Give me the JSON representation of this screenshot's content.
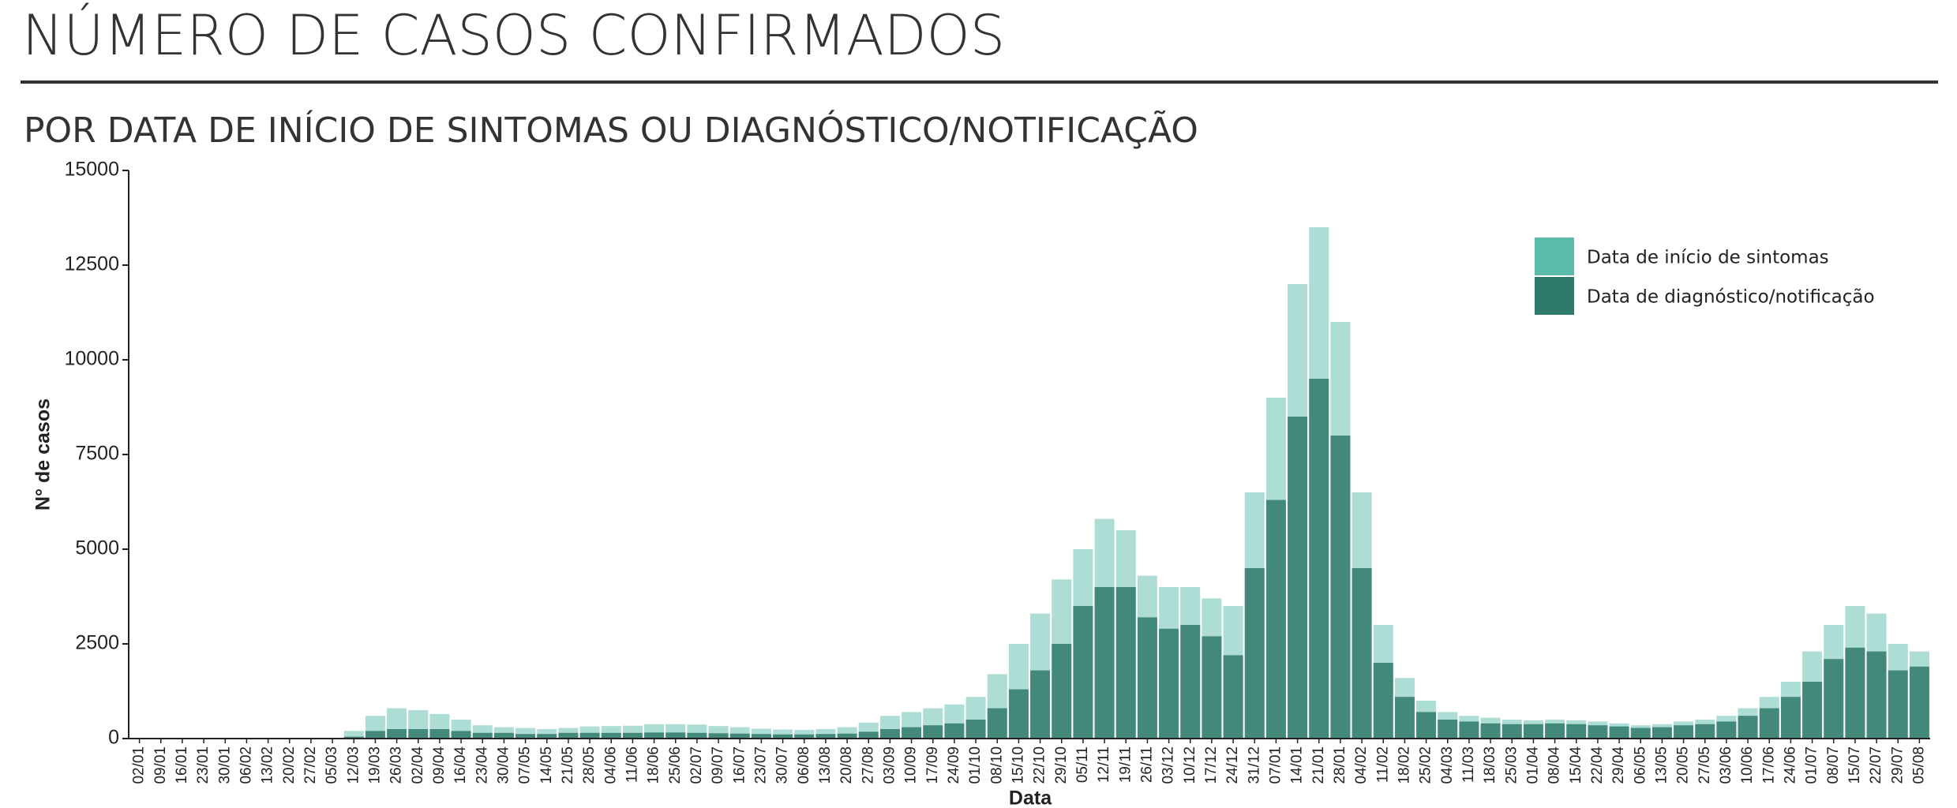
{
  "chart_data": {
    "type": "bar",
    "title": "NÚMERO DE CASOS CONFIRMADOS",
    "subtitle": "POR DATA DE INÍCIO DE SINTOMAS OU DIAGNÓSTICO/NOTIFICAÇÃO",
    "xlabel": "Data",
    "ylabel": "N° de casos",
    "categories": [
      "02/01",
      "09/01",
      "16/01",
      "23/01",
      "30/01",
      "06/02",
      "13/02",
      "20/02",
      "27/02",
      "05/03",
      "12/03",
      "19/03",
      "26/03",
      "02/04",
      "09/04",
      "16/04",
      "23/04",
      "30/04",
      "07/05",
      "14/05",
      "21/05",
      "28/05",
      "04/06",
      "11/06",
      "18/06",
      "25/06",
      "02/07",
      "09/07",
      "16/07",
      "23/07",
      "30/07",
      "06/08",
      "13/08",
      "20/08",
      "27/08",
      "03/09",
      "10/09",
      "17/09",
      "24/09",
      "01/10",
      "08/10",
      "15/10",
      "22/10",
      "29/10",
      "05/11",
      "12/11",
      "19/11",
      "26/11",
      "03/12",
      "10/12",
      "17/12",
      "24/12",
      "31/12",
      "07/01",
      "14/01",
      "21/01",
      "28/01",
      "04/02",
      "11/02",
      "18/02",
      "25/02",
      "04/03",
      "11/03",
      "18/03",
      "25/03",
      "01/04",
      "08/04",
      "15/04",
      "22/04",
      "29/04",
      "06/05",
      "13/05",
      "20/05",
      "27/05",
      "03/06",
      "10/06",
      "17/06",
      "24/06",
      "01/07",
      "08/07",
      "15/07",
      "22/07",
      "29/07",
      "05/08"
    ],
    "series": [
      {
        "name": "Data de início de sintomas",
        "color": "#5cbbaa",
        "values": [
          0,
          0,
          0,
          0,
          0,
          0,
          0,
          0,
          0,
          20,
          200,
          600,
          800,
          750,
          650,
          500,
          350,
          300,
          280,
          250,
          280,
          320,
          330,
          340,
          380,
          380,
          370,
          330,
          300,
          260,
          240,
          230,
          250,
          300,
          420,
          600,
          700,
          800,
          900,
          1100,
          1700,
          2500,
          3300,
          4200,
          5000,
          5800,
          5500,
          4300,
          4000,
          4000,
          3700,
          3500,
          6500,
          9000,
          12000,
          13500,
          11000,
          6500,
          3000,
          1600,
          1000,
          700,
          600,
          550,
          500,
          480,
          500,
          480,
          450,
          400,
          350,
          380,
          450,
          500,
          600,
          800,
          1100,
          1500,
          2300,
          3000,
          3500,
          3300,
          2500,
          2300
        ]
      },
      {
        "name": "Data de diagnóstico/notificação",
        "color": "#2f7a6c",
        "values": [
          0,
          0,
          0,
          0,
          0,
          0,
          0,
          0,
          0,
          0,
          50,
          200,
          250,
          250,
          250,
          200,
          150,
          150,
          120,
          120,
          150,
          150,
          150,
          150,
          160,
          160,
          150,
          140,
          130,
          120,
          110,
          110,
          120,
          130,
          180,
          250,
          300,
          350,
          400,
          500,
          800,
          1300,
          1800,
          2500,
          3500,
          4000,
          4000,
          3200,
          2900,
          3000,
          2700,
          2200,
          4500,
          6300,
          8500,
          9500,
          8000,
          4500,
          2000,
          1100,
          700,
          500,
          450,
          400,
          380,
          380,
          400,
          380,
          350,
          320,
          280,
          300,
          350,
          380,
          450,
          600,
          800,
          1100,
          1500,
          2100,
          2400,
          2300,
          1800,
          1900
        ]
      }
    ],
    "ylim": [
      0,
      15000
    ],
    "yticks": [
      0,
      2500,
      5000,
      7500,
      10000,
      12500,
      15000
    ],
    "legend": "upper right"
  }
}
